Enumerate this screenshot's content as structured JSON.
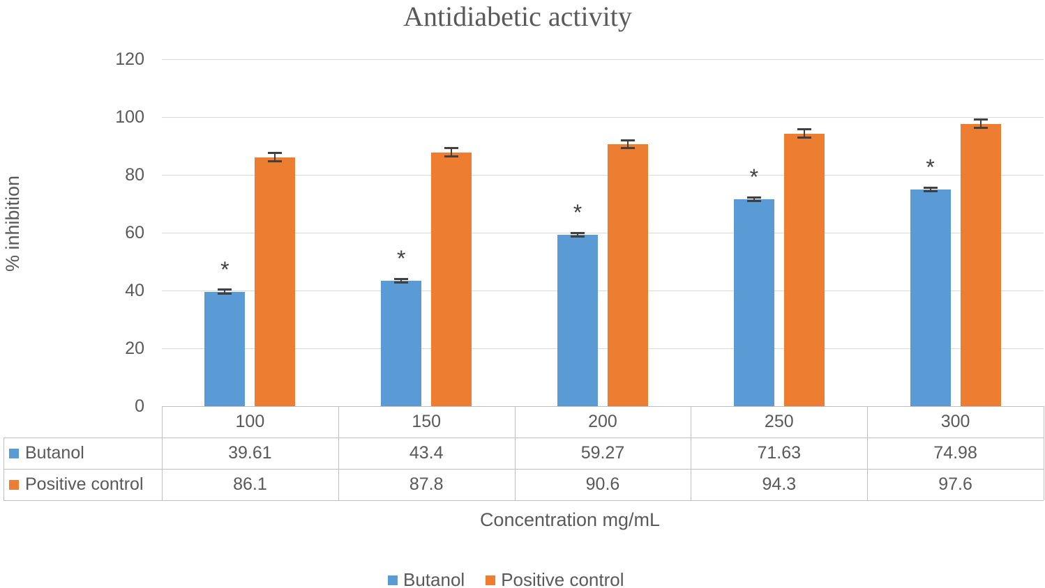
{
  "figure": {
    "title": "Antidiabetic activity",
    "y_axis_label": "% inhibition",
    "x_axis_label": "Concentration mg/mL"
  },
  "chart_data": {
    "type": "bar",
    "title": "Antidiabetic activity",
    "xlabel": "Concentration mg/mL",
    "ylabel": "% inhibition",
    "ylim": [
      0,
      120
    ],
    "yticks": [
      0,
      20,
      40,
      60,
      80,
      100,
      120
    ],
    "grid": "horizontal",
    "legend_position": "bottom",
    "categories": [
      "100",
      "150",
      "200",
      "250",
      "300"
    ],
    "series": [
      {
        "name": "Butanol",
        "color": "#5B9BD5",
        "values": [
          39.61,
          43.4,
          59.27,
          71.63,
          74.98
        ],
        "error_bar_approx": 1.0,
        "annotation_above_bars": "*"
      },
      {
        "name": "Positive control",
        "color": "#ED7D31",
        "values": [
          86.1,
          87.8,
          90.6,
          94.3,
          97.6
        ],
        "error_bar_approx": 1.8,
        "annotation_above_bars": ""
      }
    ],
    "data_table_shown": true,
    "annotation_note": "*"
  },
  "colors": {
    "text": "#595959",
    "title_text": "#595959",
    "gridline": "#D9D9D9",
    "table_border": "#BFBFBF",
    "error_bar": "#404040",
    "annotation": "#404040",
    "background": "#FFFFFF"
  }
}
